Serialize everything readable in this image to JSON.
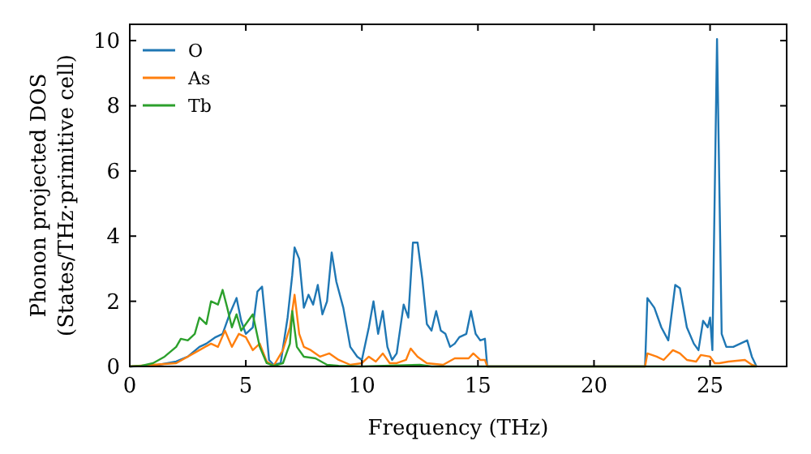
{
  "chart_data": {
    "type": "line",
    "xlabel": "Frequency (THz)",
    "ylabel": "Phonon projected DOS\n(States/THz·primitive cell)",
    "xlim": [
      0,
      28.3
    ],
    "ylim": [
      0,
      10.5
    ],
    "xticks": [
      0,
      5,
      10,
      15,
      20,
      25
    ],
    "yticks": [
      0,
      2,
      4,
      6,
      8,
      10
    ],
    "grid": false,
    "legend": "top left",
    "line_style": "solid",
    "series": [
      {
        "name": "O",
        "color": "#1f77b4",
        "x": [
          0,
          1,
          2,
          2.5,
          3,
          3.3,
          3.7,
          4,
          4.3,
          4.6,
          4.8,
          5,
          5.3,
          5.5,
          5.7,
          5.9,
          6,
          6.2,
          6.5,
          6.8,
          7,
          7.1,
          7.3,
          7.5,
          7.7,
          7.9,
          8.1,
          8.3,
          8.5,
          8.7,
          8.9,
          9.2,
          9.5,
          9.8,
          10,
          10.3,
          10.5,
          10.7,
          10.9,
          11.1,
          11.3,
          11.5,
          11.8,
          12,
          12.2,
          12.4,
          12.6,
          12.8,
          13,
          13.2,
          13.4,
          13.6,
          13.8,
          14,
          14.2,
          14.5,
          14.7,
          14.9,
          15.1,
          15.3,
          15.4,
          22.2,
          22.3,
          22.6,
          22.9,
          23.2,
          23.5,
          23.7,
          24,
          24.3,
          24.5,
          24.7,
          24.9,
          25,
          25.1,
          25.3,
          25.5,
          25.7,
          26,
          26.3,
          26.6,
          26.8,
          27
        ],
        "values": [
          0,
          0.02,
          0.15,
          0.3,
          0.6,
          0.7,
          0.9,
          1,
          1.6,
          2.1,
          1.4,
          1,
          1.2,
          2.3,
          2.45,
          1,
          0.2,
          0.05,
          0.1,
          1.5,
          2.8,
          3.65,
          3.3,
          1.8,
          2.2,
          1.9,
          2.5,
          1.6,
          2,
          3.5,
          2.6,
          1.8,
          0.6,
          0.3,
          0.2,
          1.2,
          2,
          1,
          1.7,
          0.6,
          0.2,
          0.4,
          1.9,
          1.5,
          3.8,
          3.8,
          2.7,
          1.3,
          1.1,
          1.7,
          1.1,
          1,
          0.6,
          0.7,
          0.9,
          1,
          1.7,
          1,
          0.8,
          0.85,
          0,
          0,
          2.1,
          1.8,
          1.2,
          0.8,
          2.5,
          2.4,
          1.2,
          0.7,
          0.5,
          1.4,
          1.2,
          1.5,
          0.5,
          10.05,
          1,
          0.6,
          0.6,
          0.7,
          0.8,
          0.3,
          0
        ]
      },
      {
        "name": "As",
        "color": "#ff7f0e",
        "x": [
          0,
          2,
          3,
          3.5,
          3.8,
          4.1,
          4.4,
          4.7,
          5,
          5.3,
          5.6,
          5.9,
          6.2,
          6.6,
          6.9,
          7.1,
          7.3,
          7.5,
          7.8,
          8.2,
          8.6,
          9,
          9.5,
          10,
          10.3,
          10.6,
          10.9,
          11.2,
          11.5,
          11.9,
          12.1,
          12.4,
          12.8,
          13.5,
          14,
          14.6,
          14.8,
          15.1,
          15.3,
          15.4,
          22.2,
          22.3,
          22.7,
          23,
          23.4,
          23.7,
          24,
          24.4,
          24.6,
          25,
          25.2,
          25.4,
          25.8,
          26.5,
          26.8,
          27
        ],
        "values": [
          0,
          0.1,
          0.5,
          0.7,
          0.6,
          1.1,
          0.6,
          1,
          0.9,
          0.5,
          0.7,
          0.15,
          0.02,
          0.5,
          1.2,
          2.2,
          1,
          0.6,
          0.5,
          0.3,
          0.4,
          0.2,
          0.05,
          0.1,
          0.3,
          0.15,
          0.4,
          0.1,
          0.1,
          0.2,
          0.55,
          0.3,
          0.1,
          0.05,
          0.25,
          0.25,
          0.4,
          0.2,
          0.2,
          0,
          0,
          0.4,
          0.3,
          0.2,
          0.5,
          0.4,
          0.2,
          0.15,
          0.35,
          0.3,
          0.1,
          0.1,
          0.15,
          0.2,
          0.05,
          0
        ]
      },
      {
        "name": "Tb",
        "color": "#2ca02c",
        "x": [
          0,
          0.5,
          1,
          1.5,
          2,
          2.2,
          2.5,
          2.8,
          3,
          3.3,
          3.5,
          3.8,
          4,
          4.2,
          4.4,
          4.6,
          4.8,
          5,
          5.3,
          5.6,
          5.9,
          6.2,
          6.6,
          6.9,
          7,
          7.2,
          7.5,
          8,
          8.5,
          9,
          10,
          12.5,
          13,
          27
        ],
        "values": [
          0,
          0.02,
          0.1,
          0.3,
          0.6,
          0.85,
          0.8,
          1,
          1.5,
          1.3,
          2,
          1.9,
          2.35,
          1.8,
          1.2,
          1.6,
          1.1,
          1.3,
          1.6,
          0.6,
          0.1,
          0.02,
          0.1,
          0.7,
          1.7,
          0.6,
          0.3,
          0.25,
          0.05,
          0.02,
          0,
          0.05,
          0,
          0
        ]
      }
    ]
  }
}
